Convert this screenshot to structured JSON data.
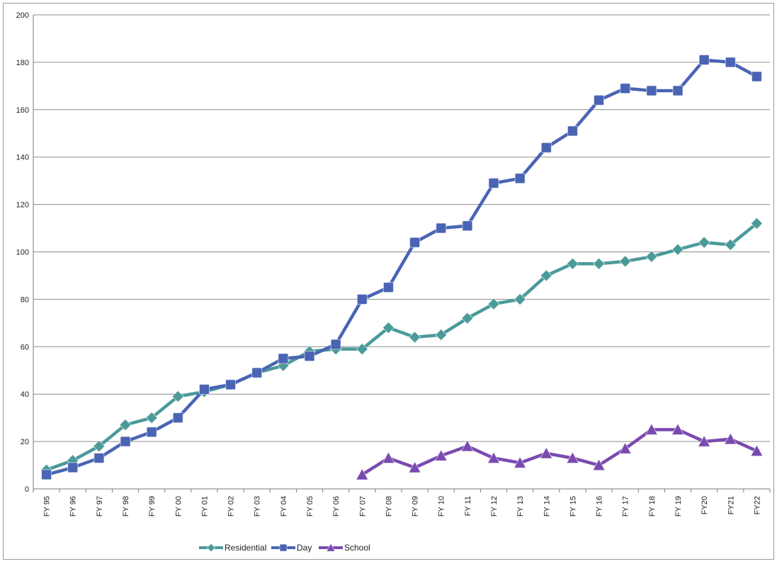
{
  "chart_data": {
    "type": "line",
    "title": "",
    "xlabel": "",
    "ylabel": "",
    "ylim": [
      0,
      200
    ],
    "yticks": [
      0,
      20,
      40,
      60,
      80,
      100,
      120,
      140,
      160,
      180,
      200
    ],
    "grid": "horizontal",
    "legend_position": "bottom",
    "categories": [
      "FY 95",
      "FY 96",
      "FY 97",
      "FY 98",
      "FY 99",
      "FY 00",
      "FY 01",
      "FY 02",
      "FY 03",
      "FY 04",
      "FY 05",
      "FY 06",
      "FY 07",
      "FY 08",
      "FY 09",
      "FY 10",
      "FY 11",
      "FY 12",
      "FY 13",
      "FY 14",
      "FY 15",
      "FY 16",
      "FY 17",
      "FY 18",
      "FY 19",
      "FY20",
      "FY21",
      "FY22"
    ],
    "series": [
      {
        "name": "Residential",
        "color": "#4a9a99",
        "marker": "diamond",
        "values": [
          8,
          12,
          18,
          27,
          30,
          39,
          41,
          44,
          49,
          52,
          58,
          59,
          59,
          68,
          64,
          65,
          72,
          78,
          80,
          90,
          95,
          95,
          96,
          98,
          101,
          104,
          103,
          112
        ]
      },
      {
        "name": "Day",
        "color": "#4a64b4",
        "marker": "square",
        "values": [
          6,
          9,
          13,
          20,
          24,
          30,
          42,
          44,
          49,
          55,
          56,
          61,
          80,
          85,
          104,
          110,
          111,
          129,
          131,
          144,
          151,
          164,
          169,
          168,
          168,
          181,
          180,
          174
        ]
      },
      {
        "name": "School",
        "color": "#7a4ab0",
        "marker": "triangle",
        "values": [
          null,
          null,
          null,
          null,
          null,
          null,
          null,
          null,
          null,
          null,
          null,
          null,
          6,
          13,
          9,
          14,
          18,
          13,
          11,
          15,
          13,
          10,
          17,
          25,
          25,
          20,
          21,
          16
        ]
      }
    ]
  }
}
